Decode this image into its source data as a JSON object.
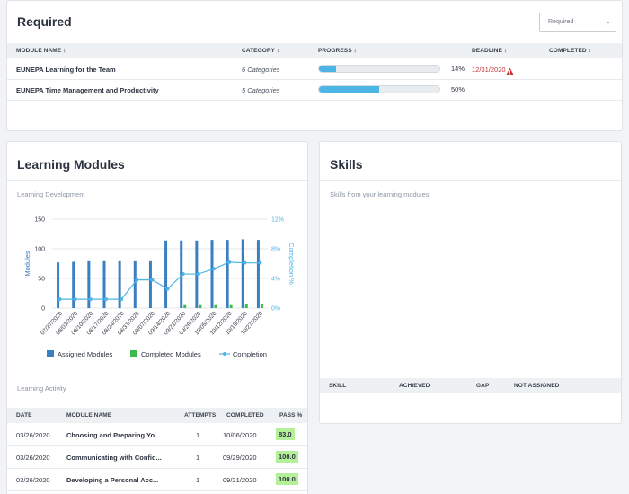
{
  "required": {
    "title": "Required",
    "filter_value": "Required",
    "columns": {
      "module_name": "MODULE NAME ↕",
      "category": "CATEGORY ↕",
      "progress": "PROGRESS ↕",
      "deadline": "DEADLINE ↕",
      "completed": "COMPLETED ↕"
    },
    "rows": [
      {
        "name": "EUNEPA Learning for the Team",
        "category": "6 Categories",
        "progress_pct": 14,
        "progress_label": "14%",
        "deadline": "12/31/2020"
      },
      {
        "name": "EUNEPA Time Management and Productivity",
        "category": "5 Categories",
        "progress_pct": 50,
        "progress_label": "50%",
        "deadline": ""
      }
    ],
    "overdue_color": "#c8353a",
    "progress_color": "#4db5e6"
  },
  "learning_modules": {
    "title": "Learning Modules",
    "development_label": "Learning Development",
    "activity_label": "Learning Activity",
    "activity_columns": {
      "date": "DATE",
      "module": "MODULE NAME",
      "attempts": "ATTEMPTS",
      "completed": "COMPLETED",
      "pass": "PASS %"
    },
    "activity_rows": [
      {
        "date": "03/26/2020",
        "module": "Choosing and Preparing Yo...",
        "attempts": "1",
        "completed": "10/06/2020",
        "pass": "83.0"
      },
      {
        "date": "03/26/2020",
        "module": "Communicating with Confid...",
        "attempts": "1",
        "completed": "09/29/2020",
        "pass": "100.0"
      },
      {
        "date": "03/26/2020",
        "module": "Developing a Personal Acc...",
        "attempts": "1",
        "completed": "09/21/2020",
        "pass": "100.0"
      }
    ]
  },
  "skills": {
    "title": "Skills",
    "subtitle": "Skills from your learning modules",
    "columns": {
      "skill": "SKILL",
      "achieved": "ACHIEVED",
      "gap": "GAP",
      "not_assigned": "NOT ASSIGNED"
    }
  },
  "chart_data": {
    "type": "bar",
    "title": "",
    "ylabel": "Modules",
    "y2label": "Completion %",
    "ylim": [
      0,
      150
    ],
    "y2lim": [
      0,
      12
    ],
    "yticks": [
      "0",
      "50",
      "100",
      "150"
    ],
    "y2ticks": [
      "0%",
      "4%",
      "8%",
      "12%"
    ],
    "grid": true,
    "legend_position": "bottom",
    "categories": [
      "07/27/2020",
      "08/03/2020",
      "08/10/2020",
      "08/17/2020",
      "08/24/2020",
      "08/31/2020",
      "09/07/2020",
      "09/14/2020",
      "09/21/2020",
      "09/28/2020",
      "10/05/2020",
      "10/12/2020",
      "10/19/2020",
      "10/27/2020"
    ],
    "series": [
      {
        "name": "Assigned Modules",
        "type": "bar",
        "color": "#3a7fc0",
        "values": [
          77,
          78,
          79,
          79,
          79,
          79,
          79,
          114,
          114,
          114,
          115,
          115,
          116,
          115
        ]
      },
      {
        "name": "Completed Modules",
        "type": "bar",
        "color": "#3dbb4a",
        "values": [
          0,
          0,
          0,
          0,
          0,
          0,
          0,
          0,
          5,
          5,
          5,
          5,
          6,
          7
        ]
      },
      {
        "name": "Completion",
        "type": "line",
        "axis": "y2",
        "color": "#4db5e6",
        "values": [
          1.2,
          1.2,
          1.2,
          1.2,
          1.2,
          3.8,
          3.8,
          2.6,
          4.6,
          4.6,
          5.3,
          6.2,
          6.1,
          6.1
        ]
      }
    ]
  }
}
